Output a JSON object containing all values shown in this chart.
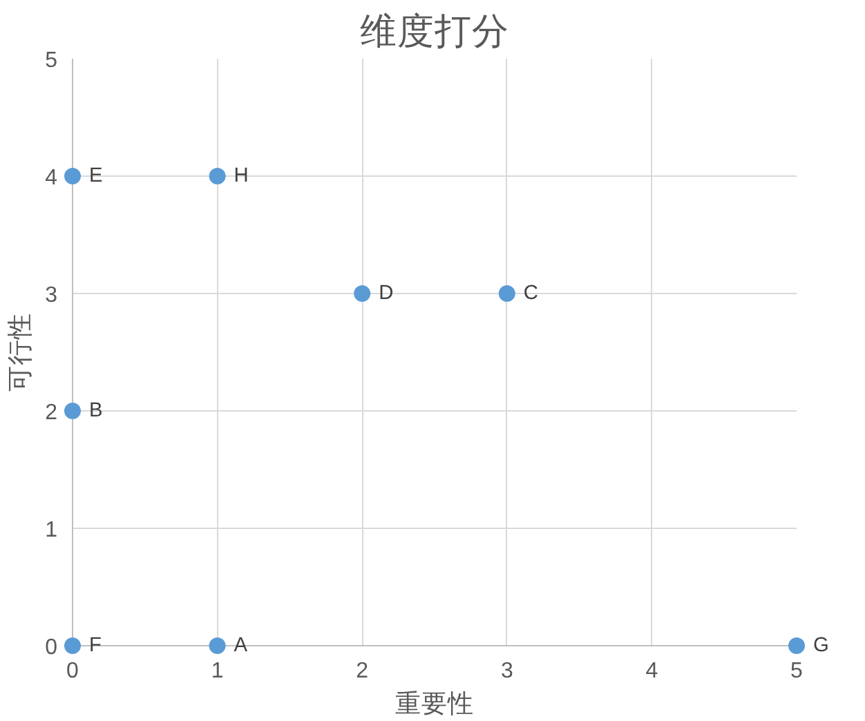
{
  "chart_data": {
    "type": "scatter",
    "title": "维度打分",
    "xlabel": "重要性",
    "ylabel": "可行性",
    "x": [
      1,
      0,
      3,
      2,
      0,
      0,
      5,
      1
    ],
    "series": [
      {
        "color": "#5b9bd5",
        "values": [
          0,
          2,
          3,
          3,
          4,
          0,
          0,
          4
        ]
      }
    ],
    "annotations": [
      {
        "text": "A",
        "x": 1,
        "y": 0
      },
      {
        "text": "B",
        "x": 0,
        "y": 2
      },
      {
        "text": "C",
        "x": 3,
        "y": 3
      },
      {
        "text": "D",
        "x": 2,
        "y": 3
      },
      {
        "text": "E",
        "x": 0,
        "y": 4
      },
      {
        "text": "F",
        "x": 0,
        "y": 0
      },
      {
        "text": "G",
        "x": 5,
        "y": 0
      },
      {
        "text": "H",
        "x": 1,
        "y": 4
      }
    ],
    "xlim": [
      0,
      5
    ],
    "ylim": [
      0,
      5
    ],
    "xticks": [
      0,
      1,
      2,
      3,
      4,
      5
    ],
    "yticks": [
      0,
      1,
      2,
      3,
      4,
      5
    ],
    "grid": true,
    "marker": "circle"
  }
}
